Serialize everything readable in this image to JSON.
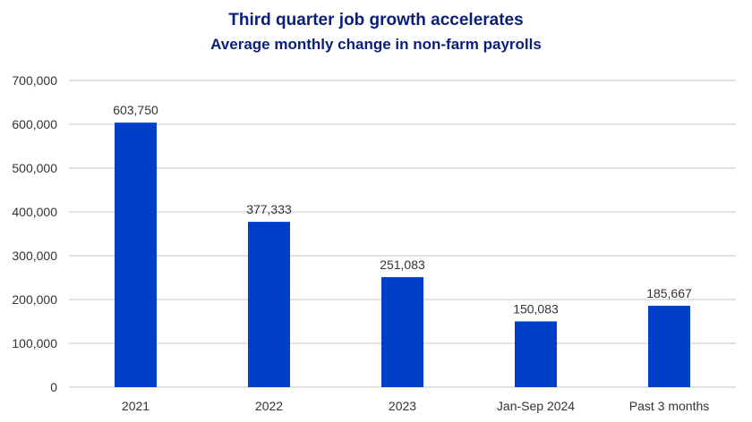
{
  "chart_data": {
    "type": "bar",
    "title": "Third quarter job growth accelerates",
    "subtitle": "Average monthly change in non-farm payrolls",
    "categories": [
      "2021",
      "2022",
      "2023",
      "Jan-Sep 2024",
      "Past 3 months"
    ],
    "values": [
      603750,
      377333,
      251083,
      150083,
      185667
    ],
    "data_labels": [
      "603,750",
      "377,333",
      "251,083",
      "150,083",
      "185,667"
    ],
    "ylim": [
      0,
      700000
    ],
    "yticks": [
      0,
      100000,
      200000,
      300000,
      400000,
      500000,
      600000,
      700000
    ],
    "ytick_labels": [
      "0",
      "100,000",
      "200,000",
      "300,000",
      "400,000",
      "500,000",
      "600,000",
      "700,000"
    ],
    "xlabel": "",
    "ylabel": "",
    "grid": "horizontal",
    "legend": "none",
    "colors": {
      "bar": "#0040c8",
      "title": "#0a1f7a",
      "grid": "#d9d9d9"
    }
  }
}
